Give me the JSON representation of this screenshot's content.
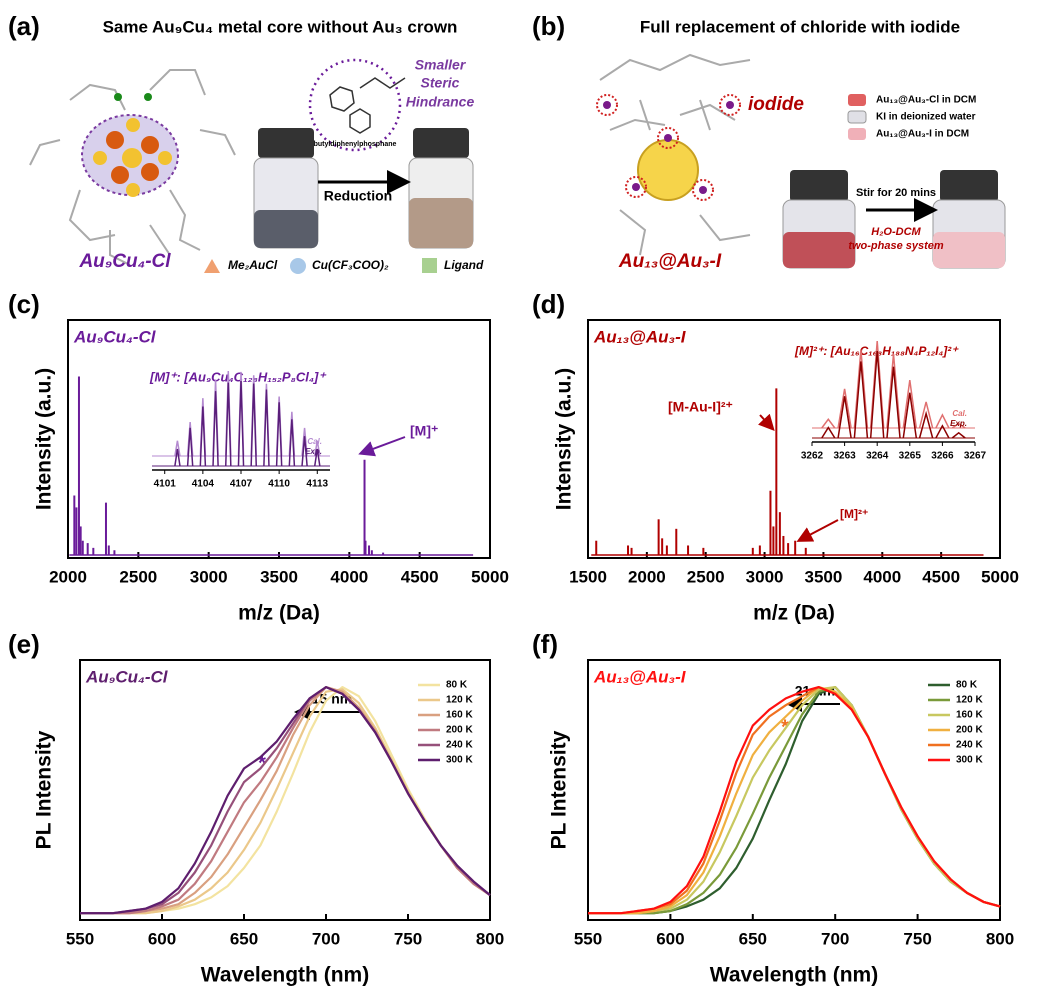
{
  "schematics": {
    "a": {
      "panel": "(a)",
      "title": "Same Au₉Cu₄ metal core without Au₃ crown",
      "hindrance": [
        "Smaller",
        "Steric",
        "Hindrance"
      ],
      "ligand_name": "butyldiphenylphosphane",
      "arrow": "Reduction",
      "cluster": "Au₉Cu₄-Cl",
      "legend": [
        "Me₂AuCl",
        "Cu(CF₃COO)₂",
        "Ligand"
      ]
    },
    "b": {
      "panel": "(b)",
      "title": "Full replacement of chloride with iodide",
      "iodide": "iodide",
      "legend": [
        "Au₁₃@Au₃-Cl in DCM",
        "KI in deionized water",
        "Au₁₃@Au₃-I in DCM"
      ],
      "arrow": "Stir for 20 mins",
      "system": [
        "H₂O-DCM",
        "two-phase system"
      ],
      "cluster": "Au₁₃@Au₃-I"
    }
  },
  "chart_data": [
    {
      "type": "spectrum",
      "panel": "(c)",
      "label": "Au₉Cu₄-Cl",
      "color": "#6a1b9a",
      "annotations": [
        "[M]⁺: [Au₉Cu₄C₁₂₈H₁₅₂P₈Cl₄]⁺",
        "[M]⁺"
      ],
      "xlabel": "m/z (Da)",
      "ylabel": "Intensity (a.u.)",
      "xlim": [
        2000,
        5000
      ],
      "xticks": [
        2000,
        2500,
        3000,
        3500,
        4000,
        4500,
        5000
      ],
      "ylim": [
        0,
        100
      ],
      "x": [
        2045,
        2060,
        2078,
        2090,
        2105,
        2140,
        2180,
        2270,
        2290,
        2330,
        4108,
        4115,
        4140,
        4160,
        4240
      ],
      "values": [
        25,
        20,
        75,
        12,
        6,
        5,
        3,
        22,
        4,
        2,
        40,
        6,
        4,
        2,
        1
      ],
      "inset": {
        "type": "spectrum",
        "xlim": [
          4100,
          4114
        ],
        "xticks": [
          4101,
          4104,
          4107,
          4110,
          4113
        ],
        "ylim": [
          0,
          100
        ],
        "x": [
          4102,
          4103,
          4104,
          4105,
          4106,
          4107,
          4108,
          4109,
          4110,
          4111,
          4112,
          4113
        ],
        "series": [
          {
            "name": "Cal.",
            "color": "#b48ad0",
            "values": [
              18,
              40,
              68,
              90,
              100,
              99,
              95,
              85,
              70,
              52,
              33,
              18
            ]
          },
          {
            "name": "Exp.",
            "color": "#5a1e7a",
            "values": [
              20,
              45,
              70,
              88,
              98,
              100,
              97,
              90,
              75,
              55,
              35,
              20
            ]
          }
        ]
      }
    },
    {
      "type": "spectrum",
      "panel": "(d)",
      "label": "Au₁₃@Au₃-I",
      "color": "#b00000",
      "annotations": [
        "[M]²⁺: [Au₁₆C₁₆₈H₁₈₈N₄P₁₂I₄]²⁺",
        "[M-Au-I]²⁺",
        "[M]²⁺"
      ],
      "xlabel": "m/z (Da)",
      "ylabel": "Intensity (a.u.)",
      "xlim": [
        1500,
        5000
      ],
      "xticks": [
        1500,
        2000,
        2500,
        3000,
        3500,
        4000,
        4500,
        5000
      ],
      "ylim": [
        0,
        100
      ],
      "x": [
        1570,
        1840,
        1870,
        2100,
        2130,
        2170,
        2250,
        2350,
        2480,
        2900,
        2960,
        3050,
        3075,
        3100,
        3130,
        3160,
        3200,
        3260,
        3350
      ],
      "values": [
        6,
        4,
        3,
        15,
        7,
        4,
        11,
        4,
        3,
        3,
        4,
        27,
        12,
        70,
        18,
        8,
        5,
        6,
        3
      ],
      "inset": {
        "type": "spectrum",
        "xlim": [
          3262,
          3267
        ],
        "xticks": [
          3262,
          3263,
          3264,
          3265,
          3266,
          3267
        ],
        "ylim": [
          0,
          100
        ],
        "x": [
          3262.5,
          3263,
          3263.5,
          3264,
          3264.5,
          3265,
          3265.5,
          3266,
          3266.5
        ],
        "series": [
          {
            "name": "Cal.",
            "color": "#e07070",
            "values": [
              10,
              45,
              90,
              100,
              85,
              55,
              30,
              15,
              5
            ]
          },
          {
            "name": "Exp.",
            "color": "#8b0000",
            "values": [
              12,
              48,
              88,
              100,
              82,
              52,
              28,
              14,
              6
            ]
          }
        ]
      }
    },
    {
      "type": "line",
      "panel": "(e)",
      "label": "Au₉Cu₄-Cl",
      "annotations": [
        "15 nm",
        "*"
      ],
      "xlabel": "Wavelength (nm)",
      "ylabel": "PL Intensity",
      "legend": "upper right",
      "xlim": [
        550,
        800
      ],
      "xticks": [
        550,
        600,
        650,
        700,
        750,
        800
      ],
      "ylim": [
        -0.03,
        1.12
      ],
      "x": [
        550,
        560,
        570,
        580,
        590,
        600,
        610,
        620,
        630,
        640,
        650,
        660,
        670,
        680,
        690,
        700,
        710,
        720,
        730,
        740,
        750,
        760,
        770,
        780,
        790,
        800
      ],
      "series": [
        {
          "name": "80 K",
          "color": "#f3e3a0",
          "values": [
            0,
            0,
            0,
            0,
            0,
            0.01,
            0.02,
            0.04,
            0.07,
            0.12,
            0.2,
            0.3,
            0.45,
            0.62,
            0.8,
            0.94,
            1.0,
            0.96,
            0.85,
            0.7,
            0.55,
            0.42,
            0.3,
            0.2,
            0.13,
            0.08
          ]
        },
        {
          "name": "120 K",
          "color": "#ebc88a",
          "values": [
            0,
            0,
            0,
            0,
            0,
            0.01,
            0.03,
            0.06,
            0.11,
            0.18,
            0.28,
            0.4,
            0.55,
            0.71,
            0.87,
            0.98,
            0.99,
            0.93,
            0.82,
            0.68,
            0.54,
            0.41,
            0.3,
            0.2,
            0.13,
            0.08
          ]
        },
        {
          "name": "160 K",
          "color": "#d9a080",
          "values": [
            0,
            0,
            0,
            0,
            0.01,
            0.02,
            0.04,
            0.09,
            0.16,
            0.26,
            0.38,
            0.5,
            0.63,
            0.79,
            0.92,
            1.0,
            0.98,
            0.91,
            0.81,
            0.67,
            0.53,
            0.41,
            0.3,
            0.2,
            0.13,
            0.08
          ]
        },
        {
          "name": "200 K",
          "color": "#c07a80",
          "values": [
            0,
            0,
            0,
            0,
            0.01,
            0.03,
            0.06,
            0.13,
            0.23,
            0.36,
            0.49,
            0.58,
            0.69,
            0.82,
            0.94,
            1.0,
            0.97,
            0.9,
            0.8,
            0.67,
            0.53,
            0.41,
            0.3,
            0.2,
            0.13,
            0.08
          ]
        },
        {
          "name": "240 K",
          "color": "#96507a",
          "values": [
            0,
            0,
            0,
            0.01,
            0.02,
            0.04,
            0.09,
            0.18,
            0.3,
            0.45,
            0.58,
            0.64,
            0.73,
            0.84,
            0.95,
            1.0,
            0.97,
            0.9,
            0.8,
            0.67,
            0.53,
            0.41,
            0.3,
            0.21,
            0.14,
            0.08
          ]
        },
        {
          "name": "300 K",
          "color": "#5e1e6e",
          "values": [
            0,
            0,
            0,
            0.01,
            0.02,
            0.05,
            0.11,
            0.22,
            0.36,
            0.52,
            0.64,
            0.69,
            0.76,
            0.86,
            0.95,
            1.0,
            0.97,
            0.9,
            0.8,
            0.67,
            0.53,
            0.41,
            0.3,
            0.21,
            0.14,
            0.08
          ]
        }
      ]
    },
    {
      "type": "line",
      "panel": "(f)",
      "label": "Au₁₃@Au₃-I",
      "annotations": [
        "21 nm",
        "*"
      ],
      "xlabel": "Wavelength (nm)",
      "ylabel": "PL Intensity",
      "legend": "upper right",
      "xlim": [
        550,
        800
      ],
      "xticks": [
        550,
        600,
        650,
        700,
        750,
        800
      ],
      "ylim": [
        -0.03,
        1.12
      ],
      "x": [
        550,
        560,
        570,
        580,
        590,
        600,
        610,
        620,
        630,
        640,
        650,
        660,
        670,
        680,
        690,
        700,
        710,
        720,
        730,
        740,
        750,
        760,
        770,
        780,
        790,
        800
      ],
      "series": [
        {
          "name": "80 K",
          "color": "#2e5e2e",
          "values": [
            0,
            0,
            0,
            0,
            0,
            0.01,
            0.03,
            0.06,
            0.11,
            0.2,
            0.33,
            0.5,
            0.66,
            0.85,
            0.97,
            1.0,
            0.92,
            0.78,
            0.62,
            0.46,
            0.33,
            0.22,
            0.14,
            0.09,
            0.05,
            0.03
          ]
        },
        {
          "name": "120 K",
          "color": "#7a9a3a",
          "values": [
            0,
            0,
            0,
            0,
            0,
            0.01,
            0.04,
            0.09,
            0.17,
            0.29,
            0.44,
            0.6,
            0.74,
            0.88,
            0.98,
            1.0,
            0.92,
            0.78,
            0.62,
            0.46,
            0.33,
            0.22,
            0.14,
            0.09,
            0.05,
            0.03
          ]
        },
        {
          "name": "160 K",
          "color": "#c8c860",
          "values": [
            0,
            0,
            0,
            0,
            0.01,
            0.02,
            0.06,
            0.14,
            0.27,
            0.43,
            0.6,
            0.72,
            0.82,
            0.92,
            0.99,
            1.0,
            0.92,
            0.78,
            0.62,
            0.46,
            0.33,
            0.22,
            0.14,
            0.09,
            0.05,
            0.03
          ]
        },
        {
          "name": "200 K",
          "color": "#f0b040",
          "values": [
            0,
            0,
            0,
            0,
            0.01,
            0.03,
            0.08,
            0.18,
            0.34,
            0.53,
            0.7,
            0.8,
            0.87,
            0.94,
            1.0,
            0.98,
            0.91,
            0.78,
            0.62,
            0.47,
            0.34,
            0.23,
            0.15,
            0.09,
            0.05,
            0.03
          ]
        },
        {
          "name": "240 K",
          "color": "#f07020",
          "values": [
            0,
            0,
            0,
            0.01,
            0.02,
            0.04,
            0.1,
            0.22,
            0.41,
            0.62,
            0.79,
            0.87,
            0.92,
            0.96,
            1.0,
            0.97,
            0.9,
            0.78,
            0.62,
            0.47,
            0.34,
            0.23,
            0.15,
            0.09,
            0.05,
            0.03
          ]
        },
        {
          "name": "300 K",
          "color": "#ff1010",
          "values": [
            0,
            0,
            0,
            0.01,
            0.02,
            0.05,
            0.12,
            0.25,
            0.45,
            0.67,
            0.83,
            0.9,
            0.95,
            0.98,
            1.0,
            0.97,
            0.9,
            0.78,
            0.62,
            0.47,
            0.34,
            0.23,
            0.15,
            0.09,
            0.05,
            0.03
          ]
        }
      ]
    }
  ]
}
